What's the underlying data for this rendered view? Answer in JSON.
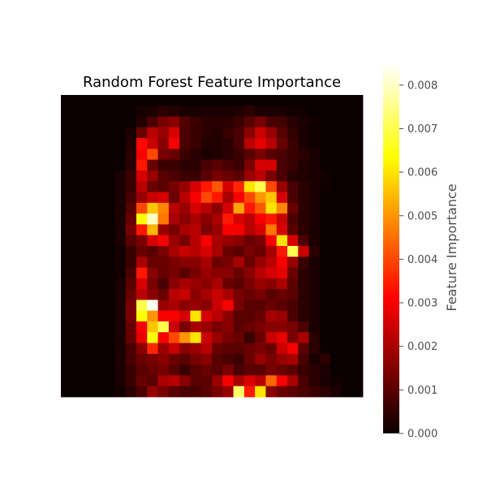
{
  "chart_data": {
    "type": "heatmap",
    "title": "Random Forest Feature Importance",
    "colormap": "hot",
    "rows": 28,
    "cols": 28,
    "axes_visible": false,
    "colorbar": {
      "label": "Feature Importance",
      "vmin": 0,
      "vmax": 0.0085,
      "ticks": [
        0.0,
        0.001,
        0.002,
        0.003,
        0.004,
        0.005,
        0.006,
        0.007,
        0.008
      ],
      "tick_labels": [
        "0.000",
        "0.001",
        "0.002",
        "0.003",
        "0.004",
        "0.005",
        "0.006",
        "0.007",
        "0.008"
      ]
    },
    "values": [
      [
        0,
        0,
        0,
        0,
        0,
        0,
        0,
        0,
        0,
        0,
        0,
        0,
        0,
        0,
        0,
        0,
        0,
        0,
        0,
        0,
        0,
        0,
        0,
        0,
        0,
        0,
        0,
        0
      ],
      [
        0,
        0,
        0,
        0,
        0,
        0,
        0,
        0.0002,
        0.0002,
        0.0004,
        0.0003,
        0.0002,
        0.0002,
        0.0002,
        0.0002,
        0.0002,
        0.0003,
        0.0004,
        0.0002,
        0.0002,
        0.0002,
        0.0001,
        0.0001,
        0,
        0,
        0,
        0,
        0
      ],
      [
        0,
        0,
        0,
        0,
        0,
        0,
        0,
        0.0003,
        0.0008,
        0.0014,
        0.0016,
        0.0009,
        0.0006,
        0.0004,
        0.0004,
        0.0004,
        0.0006,
        0.001,
        0.0014,
        0.0008,
        0.0007,
        0.0004,
        0.0002,
        0.0001,
        0,
        0,
        0,
        0
      ],
      [
        0,
        0,
        0,
        0,
        0,
        0,
        0.0002,
        0.0012,
        0.0022,
        0.0018,
        0.0026,
        0.0008,
        0.0006,
        0.0004,
        0.0003,
        0.0006,
        0.0008,
        0.0016,
        0.0024,
        0.0018,
        0.001,
        0.0005,
        0.0002,
        0.0001,
        0,
        0,
        0,
        0
      ],
      [
        0,
        0,
        0,
        0,
        0,
        0,
        0.0003,
        0.0032,
        0.0024,
        0.0016,
        0.003,
        0.0008,
        0.0006,
        0.0003,
        0.0003,
        0.0004,
        0.0008,
        0.0022,
        0.0028,
        0.0022,
        0.0012,
        0.0006,
        0.0002,
        0.0001,
        0,
        0,
        0,
        0
      ],
      [
        0,
        0,
        0,
        0,
        0,
        0,
        0.0004,
        0.003,
        0.004,
        0.0014,
        0.0012,
        0.0006,
        0.0004,
        0.0002,
        0.0003,
        0.0004,
        0.0006,
        0.001,
        0.0014,
        0.001,
        0.0008,
        0.0006,
        0.0004,
        0.0002,
        0,
        0,
        0,
        0
      ],
      [
        0,
        0,
        0,
        0,
        0,
        0,
        0.0004,
        0.0034,
        0.0012,
        0.0006,
        0.0006,
        0.0004,
        0.0004,
        0.0008,
        0.001,
        0.0008,
        0.0006,
        0.0014,
        0.0026,
        0.0026,
        0.0008,
        0.0006,
        0.0003,
        0.0002,
        0,
        0,
        0,
        0
      ],
      [
        0,
        0,
        0,
        0,
        0,
        0.0002,
        0.0006,
        0.0026,
        0.0018,
        0.001,
        0.0008,
        0.0006,
        0.0006,
        0.001,
        0.0014,
        0.0012,
        0.001,
        0.0018,
        0.0022,
        0.0014,
        0.0008,
        0.0004,
        0.0003,
        0.0002,
        0.0001,
        0,
        0,
        0
      ],
      [
        0,
        0,
        0,
        0,
        0,
        0.0002,
        0.0006,
        0.0022,
        0.0012,
        0.001,
        0.0014,
        0.0018,
        0.0026,
        0.0034,
        0.0042,
        0.0026,
        0.0036,
        0.006,
        0.007,
        0.004,
        0.0018,
        0.0008,
        0.0004,
        0.0002,
        0.0001,
        0,
        0,
        0
      ],
      [
        0,
        0,
        0,
        0,
        0,
        0.0002,
        0.0008,
        0.0018,
        0.0024,
        0.0026,
        0.0012,
        0.0022,
        0.003,
        0.004,
        0.0034,
        0.002,
        0.003,
        0.004,
        0.005,
        0.0056,
        0.0026,
        0.0008,
        0.0004,
        0.0002,
        0,
        0,
        0,
        0
      ],
      [
        0,
        0,
        0,
        0,
        0,
        0.0002,
        0.001,
        0.004,
        0.0056,
        0.0048,
        0.0022,
        0.0018,
        0.0026,
        0.0022,
        0.0016,
        0.0026,
        0.0052,
        0.0034,
        0.0042,
        0.006,
        0.0048,
        0.0012,
        0.0004,
        0.0002,
        0,
        0,
        0,
        0
      ],
      [
        0,
        0,
        0,
        0,
        0,
        0.0002,
        0.0012,
        0.0064,
        0.008,
        0.0046,
        0.002,
        0.0016,
        0.002,
        0.0016,
        0.002,
        0.0034,
        0.0026,
        0.0022,
        0.003,
        0.0034,
        0.0024,
        0.0008,
        0.0004,
        0.0002,
        0,
        0,
        0,
        0
      ],
      [
        0,
        0,
        0,
        0,
        0,
        0.0002,
        0.0014,
        0.0034,
        0.0054,
        0.0018,
        0.0014,
        0.002,
        0.0022,
        0.0014,
        0.0018,
        0.003,
        0.003,
        0.0022,
        0.0026,
        0.0046,
        0.0026,
        0.001,
        0.0004,
        0.0002,
        0,
        0,
        0,
        0
      ],
      [
        0,
        0,
        0,
        0,
        0,
        0.0002,
        0.001,
        0.0014,
        0.0026,
        0.003,
        0.0018,
        0.0014,
        0.0022,
        0.003,
        0.002,
        0.0018,
        0.0016,
        0.0012,
        0.0014,
        0.003,
        0.006,
        0.0026,
        0.0008,
        0.0002,
        0,
        0,
        0,
        0
      ],
      [
        0,
        0,
        0,
        0,
        0,
        0.0001,
        0.0006,
        0.0012,
        0.001,
        0.0014,
        0.002,
        0.0024,
        0.0022,
        0.0026,
        0.002,
        0.0012,
        0.001,
        0.0014,
        0.0012,
        0.002,
        0.0034,
        0.007,
        0.0024,
        0.0004,
        0,
        0,
        0,
        0
      ],
      [
        0,
        0,
        0,
        0,
        0,
        0.0001,
        0.0006,
        0.002,
        0.0012,
        0.0012,
        0.0014,
        0.0016,
        0.0016,
        0.002,
        0.0012,
        0.0014,
        0.002,
        0.0012,
        0.0018,
        0.0022,
        0.003,
        0.0018,
        0.0006,
        0.0002,
        0,
        0,
        0,
        0
      ],
      [
        0,
        0,
        0,
        0,
        0,
        0.0001,
        0.0008,
        0.0034,
        0.0016,
        0.0012,
        0.0014,
        0.001,
        0.0014,
        0.0018,
        0.0016,
        0.0016,
        0.0012,
        0.0016,
        0.0022,
        0.0026,
        0.0028,
        0.0012,
        0.0004,
        0.0002,
        0,
        0,
        0,
        0
      ],
      [
        0,
        0,
        0,
        0,
        0,
        0.0002,
        0.001,
        0.0026,
        0.0014,
        0.0008,
        0.0016,
        0.002,
        0.0018,
        0.0016,
        0.002,
        0.0012,
        0.001,
        0.0014,
        0.0018,
        0.0016,
        0.002,
        0.001,
        0.0004,
        0.0002,
        0,
        0,
        0,
        0
      ],
      [
        0,
        0,
        0,
        0,
        0,
        0.0002,
        0.0012,
        0.0022,
        0.0016,
        0.0012,
        0.0022,
        0.0024,
        0.0016,
        0.002,
        0.0024,
        0.002,
        0.0014,
        0.0012,
        0.0014,
        0.001,
        0.0012,
        0.001,
        0.0004,
        0.0002,
        0,
        0,
        0,
        0
      ],
      [
        0,
        0,
        0,
        0,
        0,
        0.0002,
        0.0014,
        0.007,
        0.0084,
        0.0018,
        0.002,
        0.0016,
        0.0018,
        0.0016,
        0.0024,
        0.003,
        0.0014,
        0.001,
        0.001,
        0.0012,
        0.001,
        0.0008,
        0.0004,
        0.0002,
        0,
        0,
        0,
        0
      ],
      [
        0,
        0,
        0,
        0,
        0,
        0.0002,
        0.0014,
        0.0064,
        0.005,
        0.003,
        0.003,
        0.0026,
        0.006,
        0.0026,
        0.0022,
        0.0016,
        0.001,
        0.001,
        0.0012,
        0.002,
        0.0018,
        0.0008,
        0.0004,
        0.0002,
        0,
        0,
        0,
        0
      ],
      [
        0,
        0,
        0,
        0,
        0,
        0.0002,
        0.0012,
        0.003,
        0.0056,
        0.007,
        0.0024,
        0.0014,
        0.002,
        0.0018,
        0.0014,
        0.0016,
        0.001,
        0.0012,
        0.0014,
        0.0016,
        0.0016,
        0.0014,
        0.0008,
        0.0002,
        0,
        0,
        0,
        0
      ],
      [
        0,
        0,
        0,
        0,
        0,
        0.0002,
        0.0012,
        0.0028,
        0.0064,
        0.003,
        0.004,
        0.005,
        0.006,
        0.0024,
        0.0018,
        0.0014,
        0.0012,
        0.0006,
        0.0012,
        0.0024,
        0.0028,
        0.0014,
        0.002,
        0.0004,
        0,
        0,
        0,
        0
      ],
      [
        0,
        0,
        0,
        0,
        0,
        0.0002,
        0.0008,
        0.0016,
        0.0036,
        0.0018,
        0.0024,
        0.0016,
        0.0018,
        0.0022,
        0.0012,
        0.001,
        0.001,
        0.0012,
        0.0014,
        0.0012,
        0.0024,
        0.003,
        0.001,
        0.0004,
        0,
        0,
        0,
        0
      ],
      [
        0,
        0,
        0,
        0,
        0,
        0.0002,
        0.0008,
        0.0012,
        0.0014,
        0.0016,
        0.0012,
        0.001,
        0.0014,
        0.0016,
        0.001,
        0.0008,
        0.0006,
        0.0012,
        0.0018,
        0.0014,
        0.0018,
        0.002,
        0.0008,
        0.0002,
        0.0004,
        0,
        0,
        0
      ],
      [
        0,
        0,
        0,
        0,
        0,
        0.0002,
        0.0006,
        0.001,
        0.0012,
        0.0014,
        0.001,
        0.0006,
        0.001,
        0.0012,
        0.001,
        0.0014,
        0.0008,
        0.001,
        0.001,
        0.0014,
        0.0012,
        0.001,
        0.0006,
        0.0004,
        0.0002,
        0,
        0,
        0
      ],
      [
        0,
        0,
        0,
        0,
        0,
        0.0002,
        0.0006,
        0.0012,
        0.001,
        0.002,
        0.0022,
        0.0016,
        0.001,
        0.001,
        0.0018,
        0.003,
        0.002,
        0.0026,
        0.0022,
        0.0044,
        0.003,
        0.002,
        0.0008,
        0.0004,
        0.0002,
        0.0001,
        0,
        0
      ],
      [
        0,
        0,
        0,
        0,
        0,
        0.0001,
        0.0004,
        0.0008,
        0.0018,
        0.0014,
        0.001,
        0.0008,
        0.0008,
        0.001,
        0.0014,
        0.0018,
        0.0072,
        0.0034,
        0.006,
        0.0016,
        0.0012,
        0.001,
        0.0008,
        0.0006,
        0.0004,
        0.0002,
        0,
        0
      ]
    ]
  }
}
